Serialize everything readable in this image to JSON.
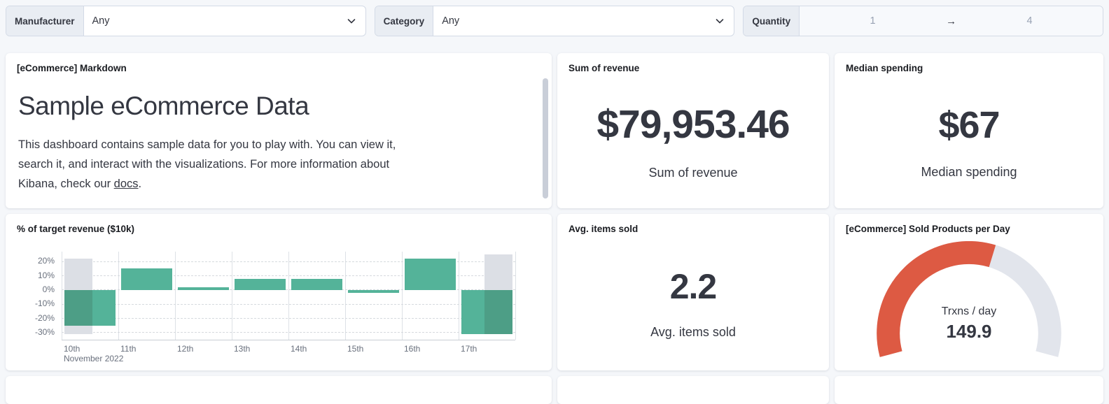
{
  "filters": {
    "manufacturer": {
      "label": "Manufacturer",
      "value": "Any"
    },
    "category": {
      "label": "Category",
      "value": "Any"
    },
    "quantity": {
      "label": "Quantity",
      "from": "1",
      "to": "4",
      "arrow": "→"
    }
  },
  "panels": {
    "markdown": {
      "title": "[eCommerce] Markdown",
      "heading": "Sample eCommerce Data",
      "body_lines": [
        "This dashboard contains sample data for you to play with. You can view it,",
        "search it, and interact with the visualizations. For more information about",
        "Kibana, check our "
      ],
      "link_text": "docs",
      "body_suffix": "."
    },
    "sum_revenue": {
      "title": "Sum of revenue",
      "value": "$79,953.46",
      "label": "Sum of revenue"
    },
    "median_spending": {
      "title": "Median spending",
      "value": "$67",
      "label": "Median spending"
    },
    "target_revenue": {
      "title": "% of target revenue ($10k)"
    },
    "avg_items": {
      "title": "Avg. items sold",
      "value": "2.2",
      "label": "Avg. items sold"
    },
    "gauge": {
      "title": "[eCommerce] Sold Products per Day",
      "center_label": "Trxns / day",
      "center_value": "149.9"
    }
  },
  "chart_data": [
    {
      "type": "bar",
      "title": "% of target revenue ($10k)",
      "categories": [
        "10th",
        "11th",
        "12th",
        "13th",
        "14th",
        "15th",
        "16th",
        "17th"
      ],
      "values": [
        -25,
        15,
        2,
        8,
        8,
        -2,
        22,
        -31
      ],
      "reference_bands": [
        {
          "category": "10th",
          "range": [
            -31,
            22
          ],
          "side": "left"
        },
        {
          "category": "17th",
          "range": [
            -31,
            25
          ],
          "side": "right"
        }
      ],
      "yticks": [
        20,
        10,
        0,
        -10,
        -20,
        -30
      ],
      "ytick_labels": [
        "20%",
        "10%",
        "0%",
        "-10%",
        "-20%",
        "-30%"
      ],
      "ylim": [
        -35,
        27
      ],
      "x_axis_secondary_label": "November 2022",
      "bar_color": "#54b399",
      "band_color": "#dcdfe5",
      "overlap_color": "#4d9e86",
      "grid": true
    },
    {
      "type": "gauge",
      "title": "[eCommerce] Sold Products per Day",
      "value": 149.9,
      "label": "Trxns / day",
      "fill_fraction": 0.58,
      "value_color": "#dd5a43",
      "track_color": "#e2e5ec"
    }
  ]
}
